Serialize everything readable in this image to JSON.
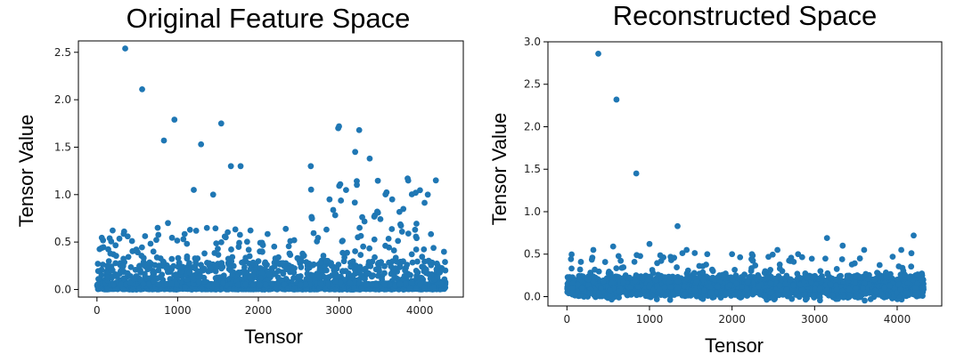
{
  "chart_data": [
    {
      "type": "scatter",
      "title": "Original Feature Space",
      "xlabel": "Tensor",
      "ylabel": "Tensor Value",
      "xlim": [
        -230,
        4540
      ],
      "ylim": [
        -0.08,
        2.62
      ],
      "xticks": [
        0,
        1000,
        2000,
        3000,
        4000
      ],
      "yticks": [
        0.0,
        0.5,
        1.0,
        1.5,
        2.0,
        2.5
      ],
      "ytick_labels": [
        "0.0",
        "0.5",
        "1.0",
        "1.5",
        "2.0",
        "2.5"
      ],
      "color": "#1f77b4",
      "grid": false,
      "x_max": 4320,
      "baseline_max": 0.1,
      "highlighted_points": [
        {
          "x": 350,
          "y": 2.54
        },
        {
          "x": 560,
          "y": 2.11
        },
        {
          "x": 960,
          "y": 1.79
        },
        {
          "x": 830,
          "y": 1.57
        },
        {
          "x": 1540,
          "y": 1.75
        },
        {
          "x": 1290,
          "y": 1.53
        },
        {
          "x": 3000,
          "y": 1.72
        },
        {
          "x": 2990,
          "y": 1.7
        },
        {
          "x": 3250,
          "y": 1.68
        },
        {
          "x": 1660,
          "y": 1.3
        },
        {
          "x": 1780,
          "y": 1.3
        },
        {
          "x": 2650,
          "y": 1.3
        },
        {
          "x": 3200,
          "y": 1.45
        },
        {
          "x": 3380,
          "y": 1.38
        },
        {
          "x": 3850,
          "y": 1.17
        },
        {
          "x": 4200,
          "y": 1.15
        },
        {
          "x": 1200,
          "y": 1.05
        },
        {
          "x": 1440,
          "y": 1.0
        },
        {
          "x": 880,
          "y": 0.7
        },
        {
          "x": 3950,
          "y": 1.02
        },
        {
          "x": 4100,
          "y": 1.0
        }
      ]
    },
    {
      "type": "scatter",
      "title": "Reconstructed Space",
      "xlabel": "Tensor",
      "ylabel": "Tensor Value",
      "xlim": [
        -230,
        4540
      ],
      "ylim": [
        -0.11,
        3.0
      ],
      "xticks": [
        0,
        1000,
        2000,
        3000,
        4000
      ],
      "yticks": [
        0.0,
        0.5,
        1.0,
        1.5,
        2.0,
        2.5,
        3.0
      ],
      "ytick_labels": [
        "0.0",
        "0.5",
        "1.0",
        "1.5",
        "2.0",
        "2.5",
        "3.0"
      ],
      "color": "#1f77b4",
      "grid": false,
      "x_max": 4320,
      "baseline_max": 0.18,
      "highlighted_points": [
        {
          "x": 380,
          "y": 2.86
        },
        {
          "x": 600,
          "y": 2.32
        },
        {
          "x": 840,
          "y": 1.45
        },
        {
          "x": 1340,
          "y": 0.83
        },
        {
          "x": 3150,
          "y": 0.69
        },
        {
          "x": 4200,
          "y": 0.72
        },
        {
          "x": 1000,
          "y": 0.62
        },
        {
          "x": 560,
          "y": 0.59
        },
        {
          "x": 3340,
          "y": 0.6
        },
        {
          "x": 3600,
          "y": 0.55
        },
        {
          "x": 2550,
          "y": 0.55
        },
        {
          "x": 320,
          "y": 0.55
        },
        {
          "x": 1450,
          "y": 0.55
        },
        {
          "x": 2000,
          "y": 0.5
        },
        {
          "x": 4050,
          "y": 0.55
        },
        {
          "x": 1700,
          "y": 0.5
        },
        {
          "x": 2800,
          "y": 0.5
        }
      ]
    }
  ]
}
